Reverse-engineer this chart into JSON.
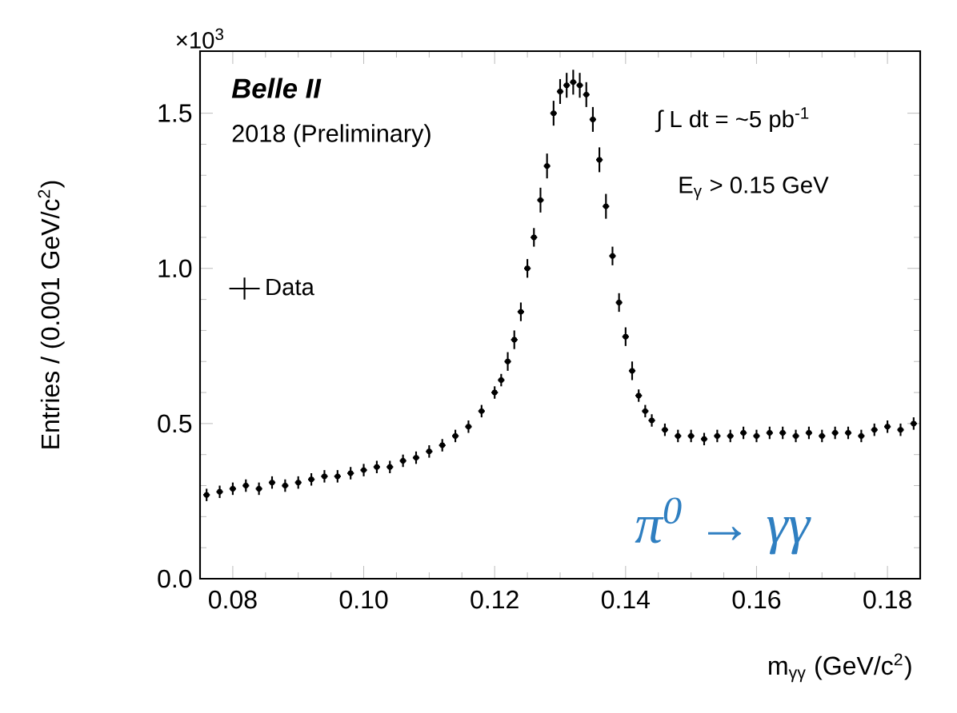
{
  "chart_data": {
    "type": "scatter",
    "xlabel": "m$_{γγ}$ (GeV/c$^{2}$)",
    "ylabel": "Entries / (0.001 GeV/c$^{2}$)",
    "annotations": [
      "Belle II",
      "2018 (Preliminary)",
      "∫ L dt = ~5 pb$^{-1}$",
      "E$_{γ}$ > 0.15 GeV",
      "π$^{0}$ → γγ",
      "×10$^{3}$"
    ],
    "xlim": [
      0.075,
      0.185
    ],
    "ylim": [
      0,
      1.7
    ],
    "xticks": [
      {
        "value": 0.08,
        "label": "0.08"
      },
      {
        "value": 0.1,
        "label": "0.10"
      },
      {
        "value": 0.12,
        "label": "0.12"
      },
      {
        "value": 0.14,
        "label": "0.14"
      },
      {
        "value": 0.16,
        "label": "0.16"
      },
      {
        "value": 0.18,
        "label": "0.18"
      }
    ],
    "yticks": [
      {
        "value": 0,
        "label": "0.0"
      },
      {
        "value": 0.5,
        "label": "0.5"
      },
      {
        "value": 1,
        "label": "1.0"
      },
      {
        "value": 1.5,
        "label": "1.5"
      }
    ],
    "legend": "left",
    "marker": "circle",
    "series": [
      {
        "name": "Data",
        "color": "#000000",
        "x": [
          0.076,
          0.078,
          0.08,
          0.082,
          0.084,
          0.086,
          0.088,
          0.09,
          0.092,
          0.094,
          0.096,
          0.098,
          0.1,
          0.102,
          0.104,
          0.106,
          0.108,
          0.11,
          0.112,
          0.114,
          0.116,
          0.118,
          0.12,
          0.121,
          0.122,
          0.123,
          0.124,
          0.125,
          0.126,
          0.127,
          0.128,
          0.129,
          0.13,
          0.131,
          0.132,
          0.133,
          0.134,
          0.135,
          0.136,
          0.137,
          0.138,
          0.139,
          0.14,
          0.141,
          0.142,
          0.143,
          0.144,
          0.146,
          0.148,
          0.15,
          0.152,
          0.154,
          0.156,
          0.158,
          0.16,
          0.162,
          0.164,
          0.166,
          0.168,
          0.17,
          0.172,
          0.174,
          0.176,
          0.178,
          0.18,
          0.182,
          0.184
        ],
        "values": [
          0.27,
          0.28,
          0.29,
          0.3,
          0.29,
          0.31,
          0.3,
          0.31,
          0.32,
          0.33,
          0.33,
          0.34,
          0.35,
          0.36,
          0.36,
          0.38,
          0.39,
          0.41,
          0.43,
          0.46,
          0.49,
          0.54,
          0.6,
          0.64,
          0.7,
          0.77,
          0.86,
          1.0,
          1.1,
          1.22,
          1.33,
          1.5,
          1.57,
          1.59,
          1.6,
          1.59,
          1.56,
          1.48,
          1.35,
          1.2,
          1.04,
          0.89,
          0.78,
          0.67,
          0.59,
          0.54,
          0.51,
          0.48,
          0.46,
          0.46,
          0.45,
          0.46,
          0.46,
          0.47,
          0.46,
          0.47,
          0.47,
          0.46,
          0.47,
          0.46,
          0.47,
          0.47,
          0.46,
          0.48,
          0.49,
          0.48,
          0.5
        ],
        "errors": [
          0.02,
          0.02,
          0.02,
          0.02,
          0.02,
          0.02,
          0.02,
          0.02,
          0.02,
          0.02,
          0.02,
          0.02,
          0.02,
          0.02,
          0.02,
          0.02,
          0.02,
          0.02,
          0.02,
          0.02,
          0.02,
          0.02,
          0.02,
          0.02,
          0.03,
          0.03,
          0.03,
          0.03,
          0.03,
          0.04,
          0.04,
          0.04,
          0.04,
          0.04,
          0.04,
          0.04,
          0.04,
          0.04,
          0.04,
          0.04,
          0.03,
          0.03,
          0.03,
          0.03,
          0.02,
          0.02,
          0.02,
          0.02,
          0.02,
          0.02,
          0.02,
          0.02,
          0.02,
          0.02,
          0.02,
          0.02,
          0.02,
          0.02,
          0.02,
          0.02,
          0.02,
          0.02,
          0.02,
          0.02,
          0.02,
          0.02,
          0.02
        ],
        "xerrors": [
          0.0005,
          0.0005,
          0.0005,
          0.0005,
          0.0005,
          0.0005,
          0.0005,
          0.0005,
          0.0005,
          0.0005,
          0.0005,
          0.0005,
          0.0005,
          0.0005,
          0.0005,
          0.0005,
          0.0005,
          0.0005,
          0.0005,
          0.0005,
          0.0005,
          0.0005,
          0.0005,
          0.0005,
          0.0005,
          0.0005,
          0.0005,
          0.0005,
          0.0005,
          0.0005,
          0.0005,
          0.0005,
          0.0005,
          0.0005,
          0.0005,
          0.0005,
          0.0005,
          0.0005,
          0.0005,
          0.0005,
          0.0005,
          0.0005,
          0.0005,
          0.0005,
          0.0005,
          0.0005,
          0.0005,
          0.0005,
          0.0005,
          0.0005,
          0.0005,
          0.0005,
          0.0005,
          0.0005,
          0.0005,
          0.0005,
          0.0005,
          0.0005,
          0.0005,
          0.0005,
          0.0005,
          0.0005,
          0.0005,
          0.0005,
          0.0005,
          0.0005,
          0.0005
        ]
      }
    ]
  }
}
